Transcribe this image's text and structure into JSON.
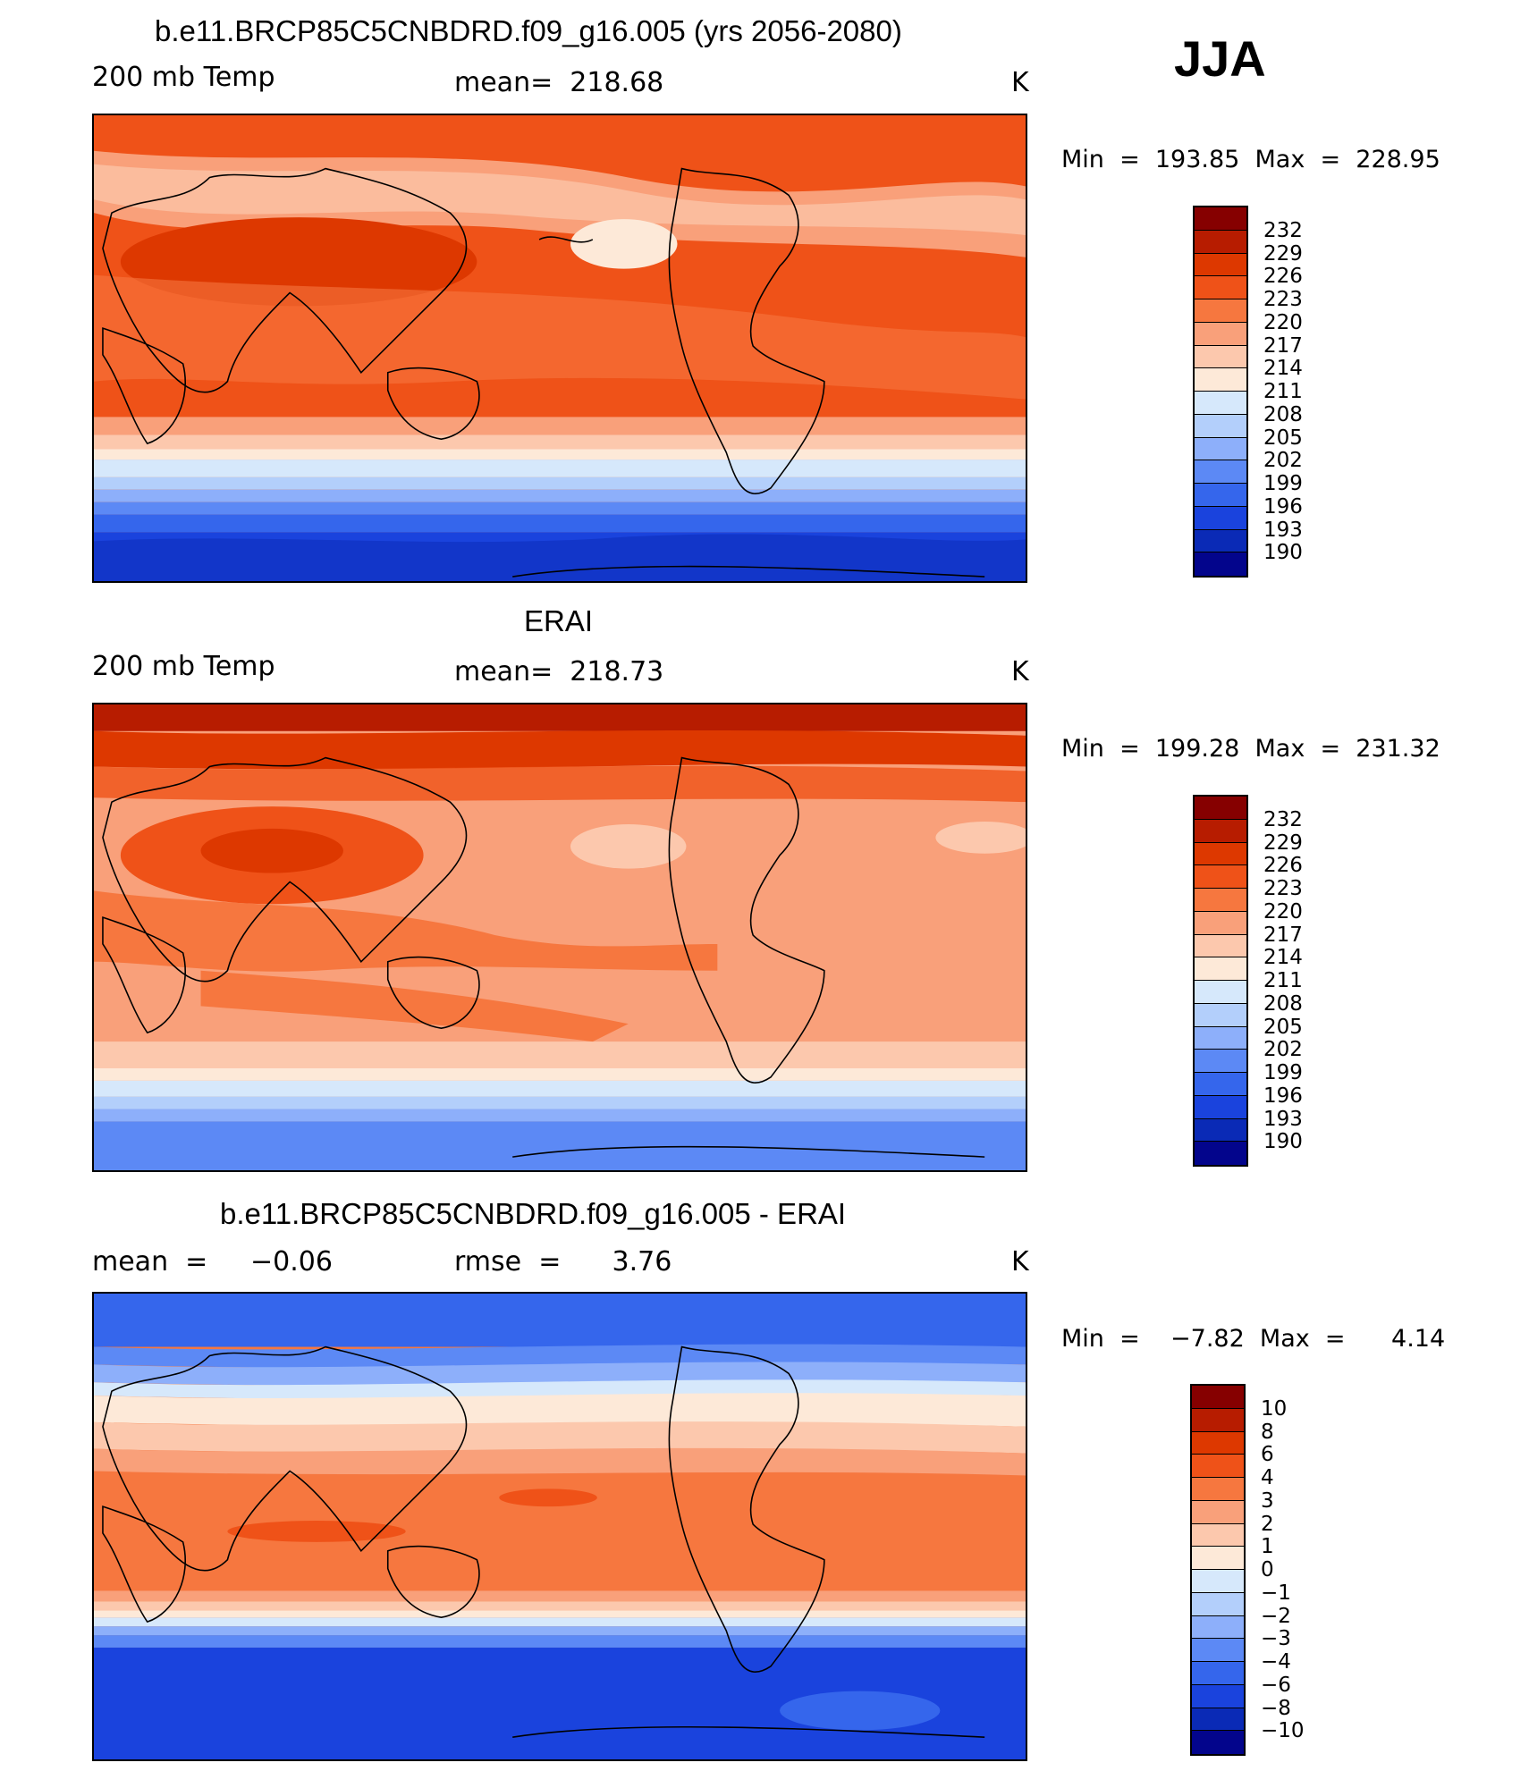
{
  "season": "JJA",
  "panels": [
    {
      "title": "b.e11.BRCP85C5CNBDRD.f09_g16.005 (yrs 2056-2080)",
      "left_label": "200 mb Temp",
      "mid_label": "mean=  218.68",
      "units": "K",
      "minmax": "Min  =  193.85  Max  =  228.95",
      "colorbar": {
        "labels": [
          "232",
          "229",
          "226",
          "223",
          "220",
          "217",
          "214",
          "211",
          "208",
          "205",
          "202",
          "199",
          "196",
          "193",
          "190"
        ],
        "colors": [
          "#860000",
          "#b71c00",
          "#dd3800",
          "#ef5218",
          "#f6773f",
          "#f9a07a",
          "#fcc8ad",
          "#fde9d8",
          "#d6e8fb",
          "#b3cffb",
          "#8daffa",
          "#5c89f5",
          "#3566ec",
          "#1a43dd",
          "#0a2ab6",
          "#03058c"
        ]
      }
    },
    {
      "title": "ERAI",
      "left_label": "200 mb Temp",
      "mid_label": "mean=  218.73",
      "units": "K",
      "minmax": "Min  =  199.28  Max  =  231.32",
      "colorbar": {
        "labels": [
          "232",
          "229",
          "226",
          "223",
          "220",
          "217",
          "214",
          "211",
          "208",
          "205",
          "202",
          "199",
          "196",
          "193",
          "190"
        ],
        "colors": [
          "#860000",
          "#b71c00",
          "#dd3800",
          "#ef5218",
          "#f6773f",
          "#f9a07a",
          "#fcc8ad",
          "#fde9d8",
          "#d6e8fb",
          "#b3cffb",
          "#8daffa",
          "#5c89f5",
          "#3566ec",
          "#1a43dd",
          "#0a2ab6",
          "#03058c"
        ]
      }
    },
    {
      "title": "b.e11.BRCP85C5CNBDRD.f09_g16.005 - ERAI",
      "left_label": "mean  =     −0.06",
      "mid_label": "rmse  =      3.76",
      "units": "K",
      "minmax": "Min  =    −7.82  Max  =      4.14",
      "colorbar": {
        "labels": [
          "10",
          "8",
          "6",
          "4",
          "3",
          "2",
          "1",
          "0",
          "−1",
          "−2",
          "−3",
          "−4",
          "−6",
          "−8",
          "−10"
        ],
        "colors": [
          "#860000",
          "#b71c00",
          "#dd3800",
          "#ef5218",
          "#f6773f",
          "#f9a07a",
          "#fcc8ad",
          "#fde9d8",
          "#d6e8fb",
          "#b3cffb",
          "#8daffa",
          "#5c89f5",
          "#3566ec",
          "#1a43dd",
          "#0a2ab6",
          "#03058c"
        ]
      }
    }
  ]
}
